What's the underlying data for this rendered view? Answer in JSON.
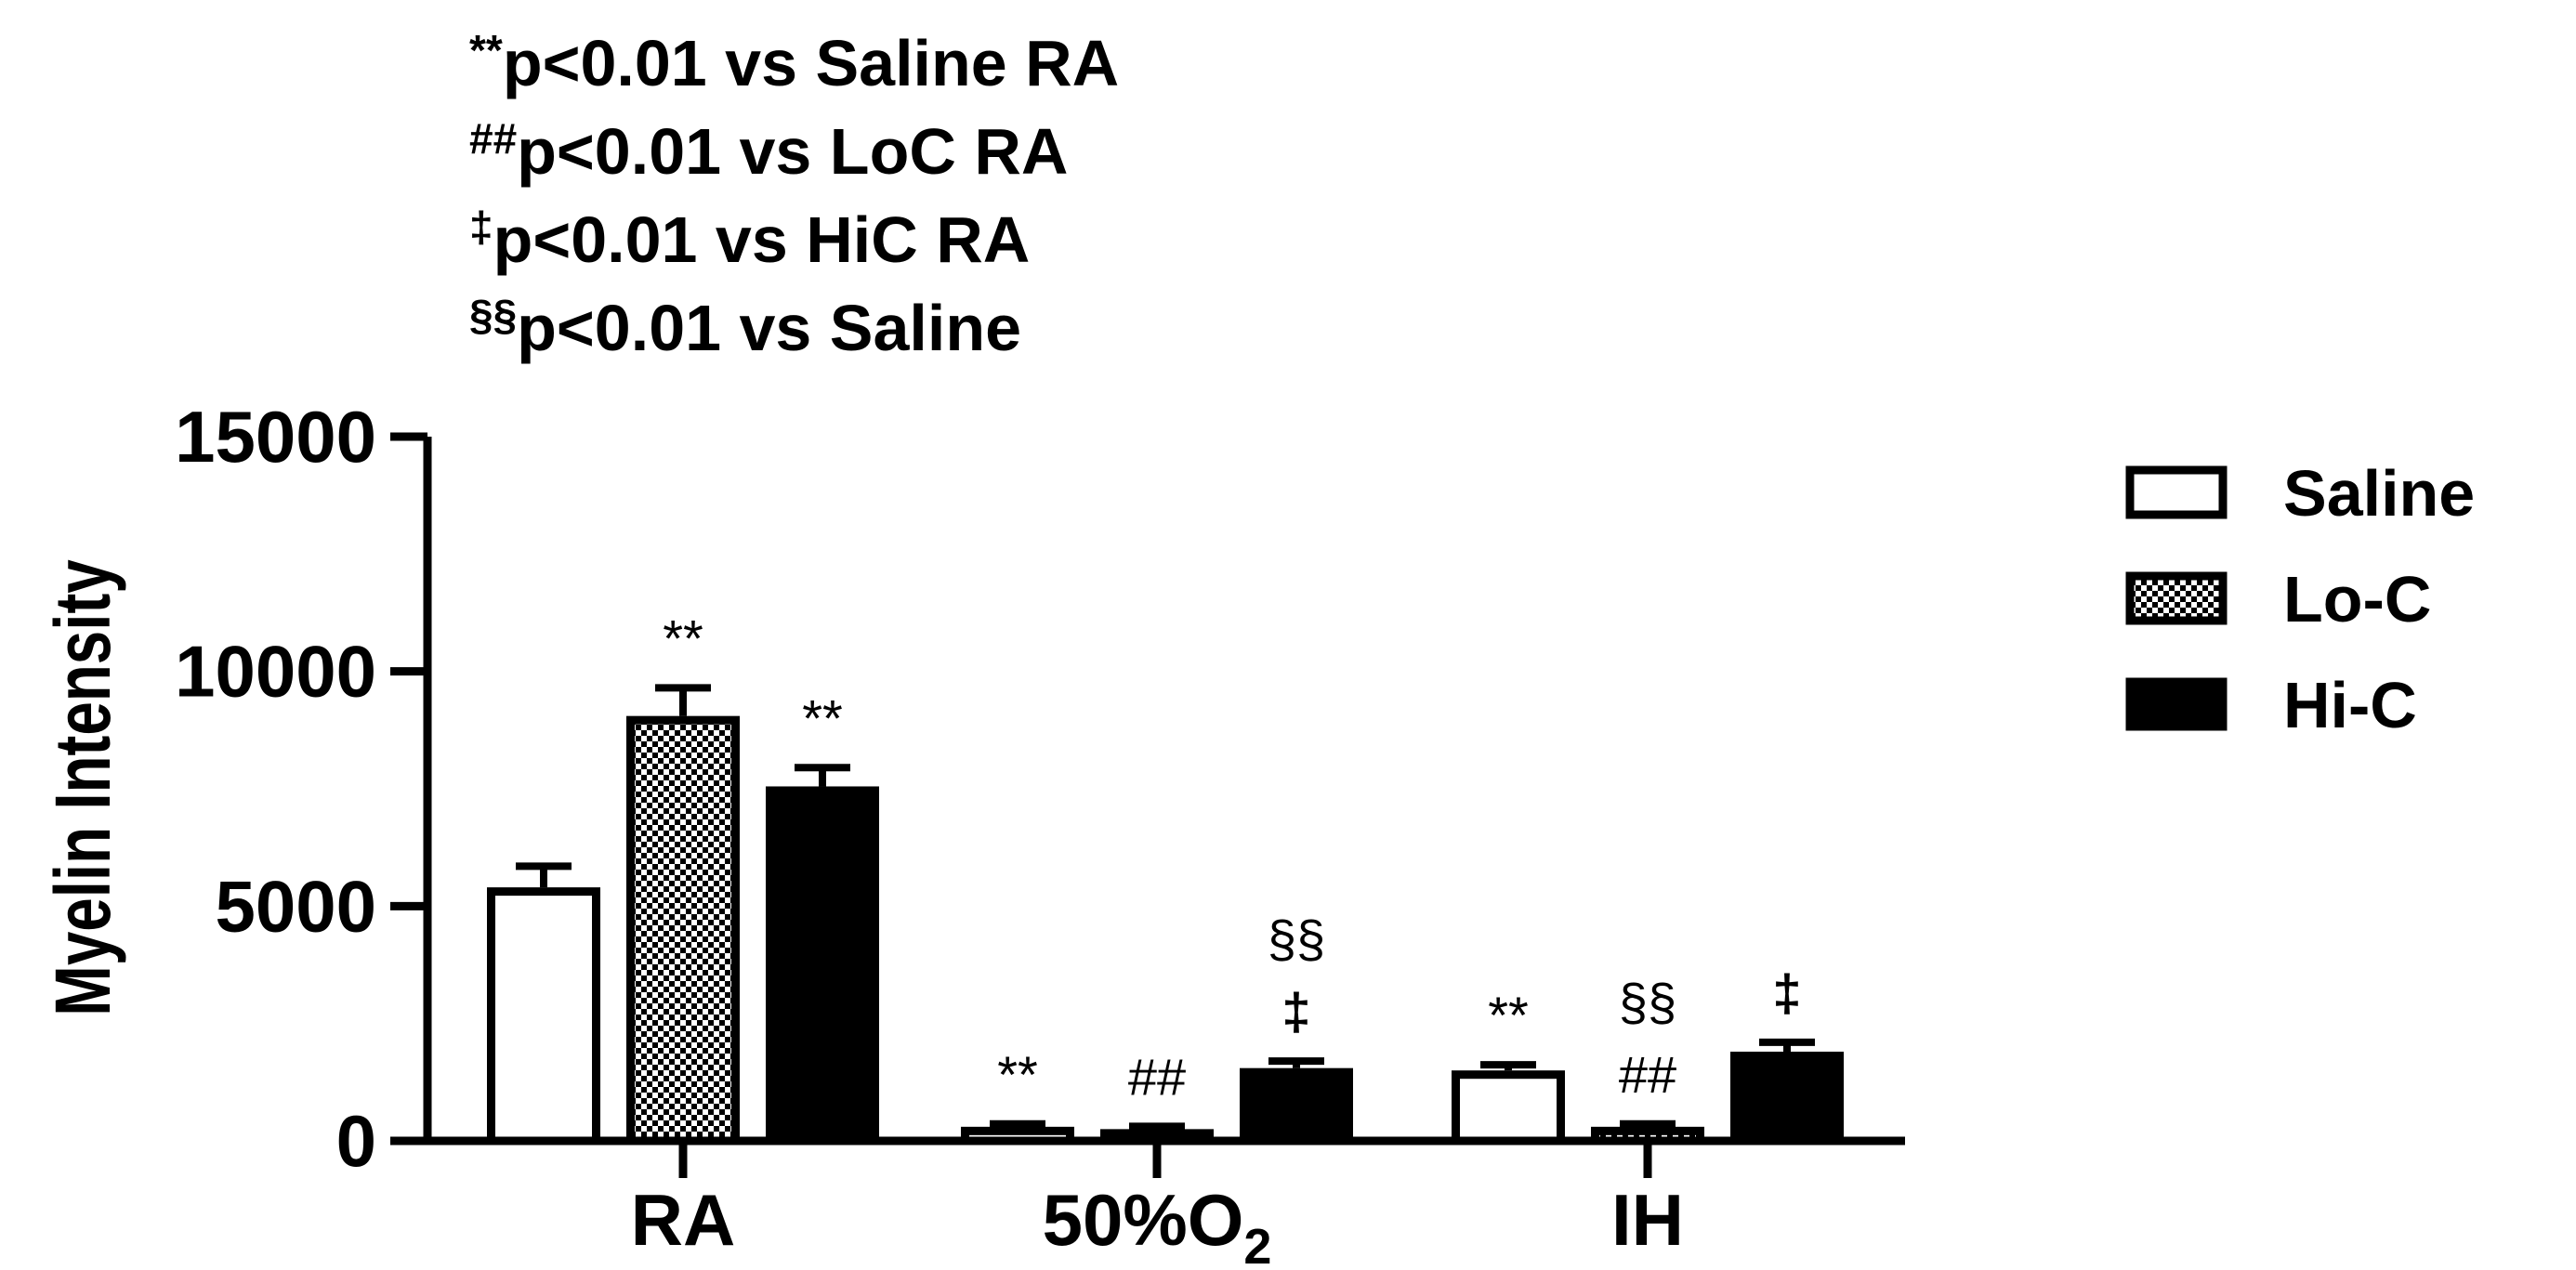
{
  "notes": [
    {
      "symbol": "**",
      "text": "p<0.01 vs Saline RA"
    },
    {
      "symbol": "##",
      "text": "p<0.01 vs LoC RA"
    },
    {
      "symbol": "‡",
      "text": "p<0.01 vs HiC RA"
    },
    {
      "symbol": "§§",
      "text": "p<0.01 vs Saline"
    }
  ],
  "chart_data": {
    "type": "bar",
    "categories": [
      "RA",
      "50%O2",
      "IH"
    ],
    "category_labels": [
      {
        "main": "RA",
        "sub": ""
      },
      {
        "main": "50%O",
        "sub": "2"
      },
      {
        "main": "IH",
        "sub": ""
      }
    ],
    "ylabel": "Myelin Intensity",
    "xlabel": "",
    "ylim": [
      0,
      15000
    ],
    "yticks": [
      0,
      5000,
      10000,
      15000
    ],
    "ytick_labels": [
      "0",
      "5000",
      "10000",
      "15000"
    ],
    "legend_position": "right",
    "grid": false,
    "series": [
      {
        "name": "Saline",
        "fill": "white",
        "values": [
          5400,
          300,
          1500
        ],
        "errors": [
          450,
          60,
          120
        ],
        "annotations": [
          [],
          [
            "**"
          ],
          [
            "**"
          ]
        ]
      },
      {
        "name": "Lo-C",
        "fill": "checkered",
        "values": [
          9050,
          250,
          300
        ],
        "errors": [
          600,
          60,
          60
        ],
        "annotations": [
          [
            "**"
          ],
          [
            "##"
          ],
          [
            "##",
            "§§"
          ]
        ]
      },
      {
        "name": "Hi-C",
        "fill": "black",
        "values": [
          7550,
          1550,
          1900
        ],
        "errors": [
          400,
          150,
          200
        ],
        "annotations": [
          [
            "**"
          ],
          [
            "‡",
            "§§"
          ],
          [
            "‡"
          ]
        ]
      }
    ]
  }
}
